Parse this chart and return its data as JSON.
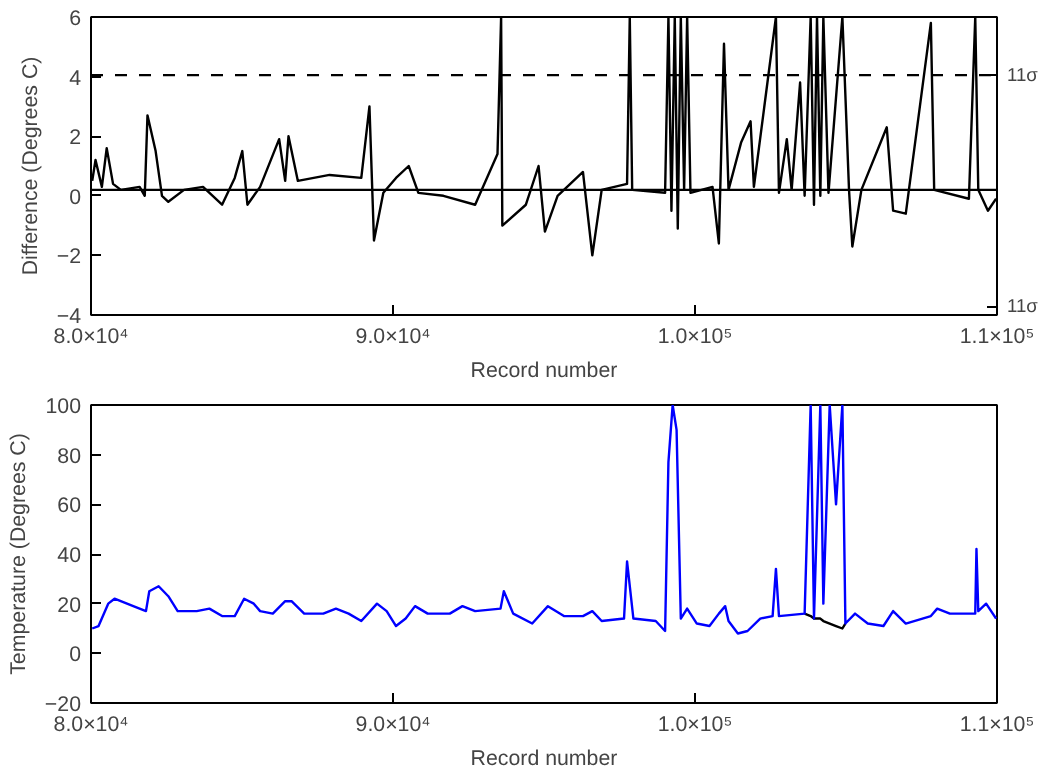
{
  "chart_data": [
    {
      "type": "line",
      "xlabel": "Record number",
      "ylabel": "Difference (Degrees C)",
      "xlim": [
        80000,
        110000
      ],
      "ylim": [
        -4,
        6
      ],
      "xticks": [
        {
          "value": 80000,
          "label": "8.0×10⁴"
        },
        {
          "value": 90000,
          "label": "9.0×10⁴"
        },
        {
          "value": 100000,
          "label": "1.0×10⁵"
        },
        {
          "value": 110000,
          "label": "1.1×10⁵"
        }
      ],
      "yticks": [
        -4,
        -2,
        0,
        2,
        4,
        6
      ],
      "grid": false,
      "x": [
        80040,
        80150,
        80360,
        80520,
        80730,
        80990,
        81610,
        81780,
        81870,
        82140,
        82350,
        82560,
        83080,
        83710,
        84340,
        84760,
        85010,
        85180,
        85600,
        86230,
        86430,
        86540,
        86850,
        87900,
        88950,
        89220,
        89370,
        89680,
        90100,
        90520,
        90840,
        91670,
        92720,
        93460,
        93580,
        93620,
        94400,
        94820,
        95030,
        95450,
        96290,
        96600,
        96910,
        97750,
        97840,
        97920,
        99010,
        99120,
        99220,
        99330,
        99430,
        99530,
        99640,
        99740,
        99850,
        100580,
        100790,
        100960,
        101110,
        101530,
        101840,
        101950,
        102680,
        102780,
        103040,
        103200,
        103480,
        103630,
        103830,
        103940,
        104040,
        104150,
        104250,
        104420,
        104880,
        105100,
        105210,
        105510,
        106350,
        106560,
        106980,
        107810,
        107920,
        109070,
        109280,
        109380,
        109700,
        109970
      ],
      "series": [
        {
          "color": "#000000",
          "values": [
            0.5,
            1.2,
            0.3,
            1.6,
            0.4,
            0.2,
            0.3,
            0.0,
            2.7,
            1.5,
            0.0,
            -0.2,
            0.2,
            0.3,
            -0.3,
            0.6,
            1.5,
            -0.3,
            0.3,
            1.9,
            0.5,
            2.0,
            0.5,
            0.7,
            0.6,
            3.0,
            -1.5,
            0.1,
            0.6,
            1.0,
            0.1,
            0.0,
            -0.3,
            1.4,
            6,
            -1.0,
            -0.3,
            1.0,
            -1.2,
            0.0,
            0.8,
            -2.0,
            0.2,
            0.4,
            6,
            0.2,
            0.1,
            6,
            -0.5,
            6,
            -1.1,
            6,
            0.2,
            6,
            0.1,
            0.3,
            -1.6,
            5.1,
            0.2,
            1.8,
            2.5,
            0.3,
            6,
            0.1,
            1.9,
            0.2,
            3.8,
            0.0,
            6,
            -0.3,
            6,
            0.0,
            6,
            0.1,
            6,
            0.2,
            -1.7,
            0.2,
            2.3,
            -0.5,
            -0.6,
            5.8,
            0.2,
            -0.1,
            6,
            0.2,
            -0.5,
            -0.1
          ]
        }
      ],
      "ref_lines": [
        {
          "axis": "y",
          "value": 4.05,
          "label": "11σ",
          "line_style": "dashed",
          "color": "#000000"
        },
        {
          "axis": "y",
          "value": 0.2,
          "color": "#000000",
          "line_style": "solid"
        }
      ],
      "annotations": [
        "11σ"
      ]
    },
    {
      "type": "line",
      "xlabel": "Record number",
      "ylabel": "Temperature (Degrees C)",
      "xlim": [
        80000,
        110000
      ],
      "ylim": [
        -20,
        100
      ],
      "xticks": [
        {
          "value": 80000,
          "label": "8.0×10⁴"
        },
        {
          "value": 90000,
          "label": "9.0×10⁴"
        },
        {
          "value": 100000,
          "label": "1.0×10⁵"
        },
        {
          "value": 110000,
          "label": "1.1×10⁵"
        }
      ],
      "yticks": [
        -20,
        0,
        20,
        40,
        60,
        80,
        100
      ],
      "grid": false,
      "x": [
        80040,
        80250,
        80570,
        80780,
        81400,
        81820,
        81930,
        82240,
        82560,
        82870,
        83500,
        83920,
        84340,
        84760,
        85070,
        85390,
        85600,
        86020,
        86430,
        86640,
        87060,
        87690,
        88110,
        88530,
        88950,
        89470,
        89790,
        90100,
        90420,
        90730,
        91150,
        91880,
        92300,
        92720,
        93560,
        93670,
        93980,
        94610,
        95130,
        95660,
        96290,
        96600,
        96910,
        97650,
        97750,
        97960,
        98700,
        99010,
        99120,
        99260,
        99390,
        99530,
        99740,
        100060,
        100480,
        100790,
        101000,
        101110,
        101420,
        101740,
        102160,
        102570,
        102680,
        102780,
        103630,
        103830,
        103940,
        104150,
        104250,
        104460,
        104670,
        104880,
        104980,
        105300,
        105720,
        106240,
        106560,
        106980,
        107810,
        108020,
        108440,
        109280,
        109320,
        109380,
        109640,
        109970
      ],
      "series": [
        {
          "color": "#000000",
          "values": [
            null,
            null,
            null,
            null,
            null,
            null,
            null,
            null,
            null,
            null,
            null,
            null,
            null,
            null,
            null,
            null,
            null,
            null,
            null,
            null,
            null,
            null,
            null,
            null,
            null,
            null,
            null,
            null,
            null,
            null,
            null,
            null,
            null,
            null,
            null,
            null,
            null,
            null,
            null,
            null,
            null,
            null,
            null,
            null,
            null,
            null,
            null,
            null,
            null,
            null,
            null,
            null,
            null,
            null,
            null,
            null,
            null,
            null,
            null,
            null,
            null,
            null,
            null,
            null,
            16,
            15,
            14,
            14,
            13,
            12,
            11,
            10,
            12,
            null,
            null,
            null,
            null,
            null,
            null,
            null,
            null,
            null,
            null,
            null,
            null,
            null
          ]
        },
        {
          "color": "#0000ff",
          "values": [
            10,
            11,
            20,
            22,
            19,
            17,
            25,
            27,
            23,
            17,
            17,
            18,
            15,
            15,
            22,
            20,
            17,
            16,
            21,
            21,
            16,
            16,
            18,
            16,
            13,
            20,
            17,
            11,
            14,
            19,
            16,
            16,
            19,
            17,
            18,
            25,
            16,
            12,
            19,
            15,
            15,
            17,
            13,
            14,
            37,
            14,
            13,
            9,
            77,
            100,
            90,
            14,
            18,
            12,
            11,
            16,
            19,
            13,
            8,
            9,
            14,
            15,
            34,
            15,
            16,
            100,
            14,
            100,
            20,
            100,
            60,
            100,
            12,
            16,
            12,
            11,
            17,
            12,
            15,
            18,
            16,
            16,
            42,
            17,
            20,
            14
          ]
        }
      ]
    }
  ]
}
